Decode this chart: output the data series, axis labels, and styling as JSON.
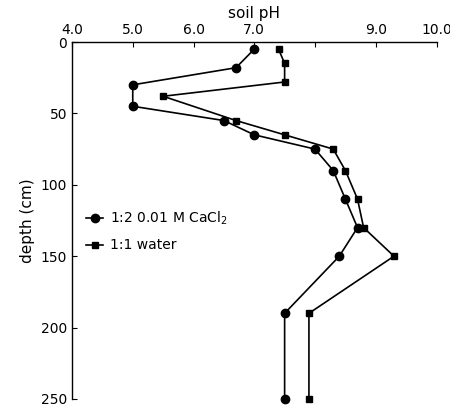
{
  "xlabel_top": "soil pH",
  "ylabel": "depth (cm)",
  "xlim": [
    4.0,
    10.0
  ],
  "ylim": [
    250,
    0
  ],
  "xticks": [
    4.0,
    5.0,
    6.0,
    7.0,
    8.0,
    9.0,
    10.0
  ],
  "xticklabels": [
    "4.0",
    "5.0",
    "6.0",
    "7.0",
    "",
    "9.0",
    "10.0"
  ],
  "yticks": [
    0,
    50,
    100,
    150,
    200,
    250
  ],
  "cacl2_depth": [
    5,
    18,
    30,
    45,
    55,
    65,
    75,
    90,
    110,
    130,
    150,
    190,
    250
  ],
  "cacl2_ph": [
    7.0,
    6.7,
    5.0,
    5.0,
    6.5,
    7.0,
    8.0,
    8.3,
    8.5,
    8.7,
    8.4,
    7.5,
    7.5
  ],
  "water_depth": [
    5,
    15,
    28,
    38,
    55,
    65,
    75,
    90,
    110,
    130,
    150,
    190,
    250
  ],
  "water_ph": [
    7.4,
    7.5,
    7.5,
    5.5,
    6.7,
    7.5,
    8.3,
    8.5,
    8.7,
    8.8,
    9.3,
    7.9,
    7.9
  ],
  "marker_circle": "o",
  "marker_square": "s",
  "line_color": "black",
  "marker_size": 6,
  "marker_size_sq": 5,
  "line_width": 1.2,
  "legend_cacl2": "1:2 0.01 M CaCl$_2$",
  "legend_water": "1:1 water",
  "background_color": "#ffffff"
}
